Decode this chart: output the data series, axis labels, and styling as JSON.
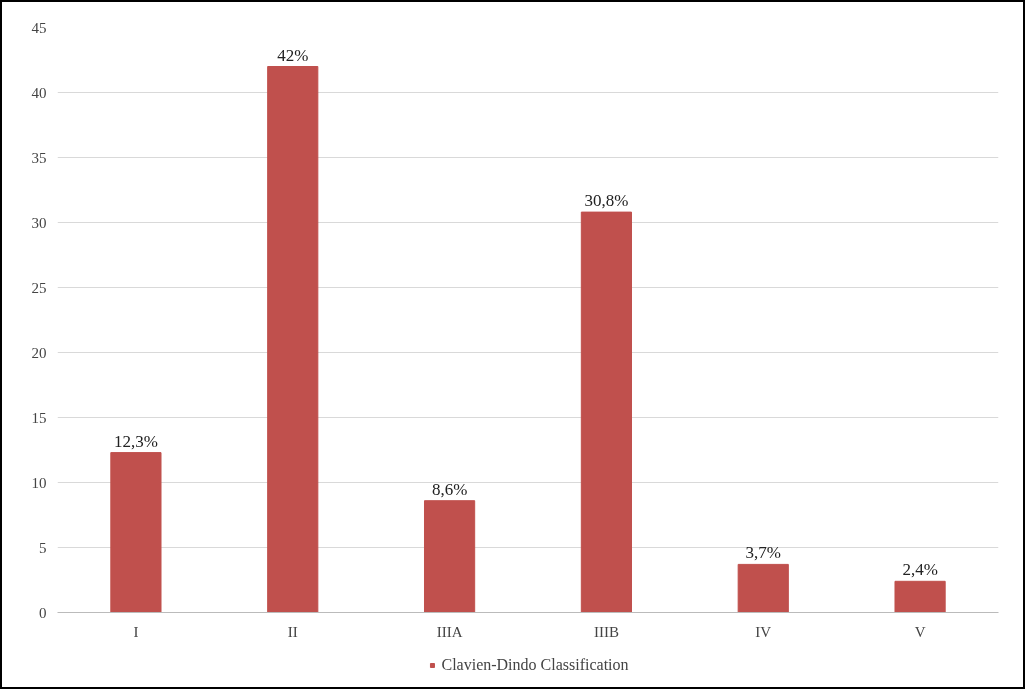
{
  "chart_data": {
    "type": "bar",
    "categories": [
      "I",
      "II",
      "IIIA",
      "IIIB",
      "IV",
      "V"
    ],
    "series": [
      {
        "name": "Clavien-Dindo Classification",
        "color": "#c0504d",
        "values": [
          12.3,
          42,
          8.6,
          30.8,
          3.7,
          2.4
        ],
        "value_labels": [
          "12,3%",
          "42%",
          "8,6%",
          "30,8%",
          "3,7%",
          "2,4%"
        ]
      }
    ],
    "ylim": [
      0,
      45
    ],
    "yticks": [
      0,
      5,
      10,
      15,
      20,
      25,
      30,
      35,
      40,
      45
    ],
    "grid": "y",
    "legend": "bottom"
  }
}
